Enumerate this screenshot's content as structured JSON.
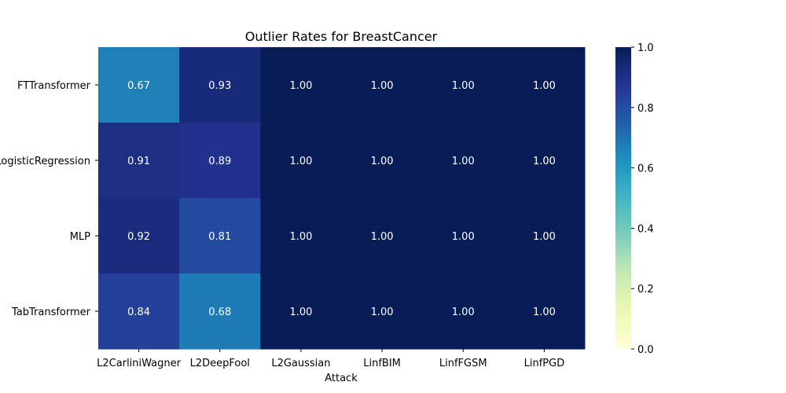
{
  "chart_data": {
    "type": "heatmap",
    "title": "Outlier Rates for BreastCancer",
    "xlabel": "Attack",
    "ylabel": "",
    "x_categories": [
      "L2CarliniWagner",
      "L2DeepFool",
      "L2Gaussian",
      "LinfBIM",
      "LinfFGSM",
      "LinfPGD"
    ],
    "y_categories": [
      "FTTransformer",
      "LogisticRegression",
      "MLP",
      "TabTransformer"
    ],
    "values": [
      [
        0.67,
        0.93,
        1.0,
        1.0,
        1.0,
        1.0
      ],
      [
        0.91,
        0.89,
        1.0,
        1.0,
        1.0,
        1.0
      ],
      [
        0.92,
        0.81,
        1.0,
        1.0,
        1.0,
        1.0
      ],
      [
        0.84,
        0.68,
        1.0,
        1.0,
        1.0,
        1.0
      ]
    ],
    "value_format": "2 decimals",
    "colormap": "YlGnBu",
    "colorbar": {
      "range": [
        0,
        1
      ],
      "ticks": [
        "0.0",
        "0.2",
        "0.4",
        "0.6",
        "0.8",
        "1.0"
      ]
    },
    "colors": {
      "low": "#ffffd9",
      "high": "#081d58",
      "light_text": "#ffffff",
      "dark_text": "#000000"
    }
  }
}
